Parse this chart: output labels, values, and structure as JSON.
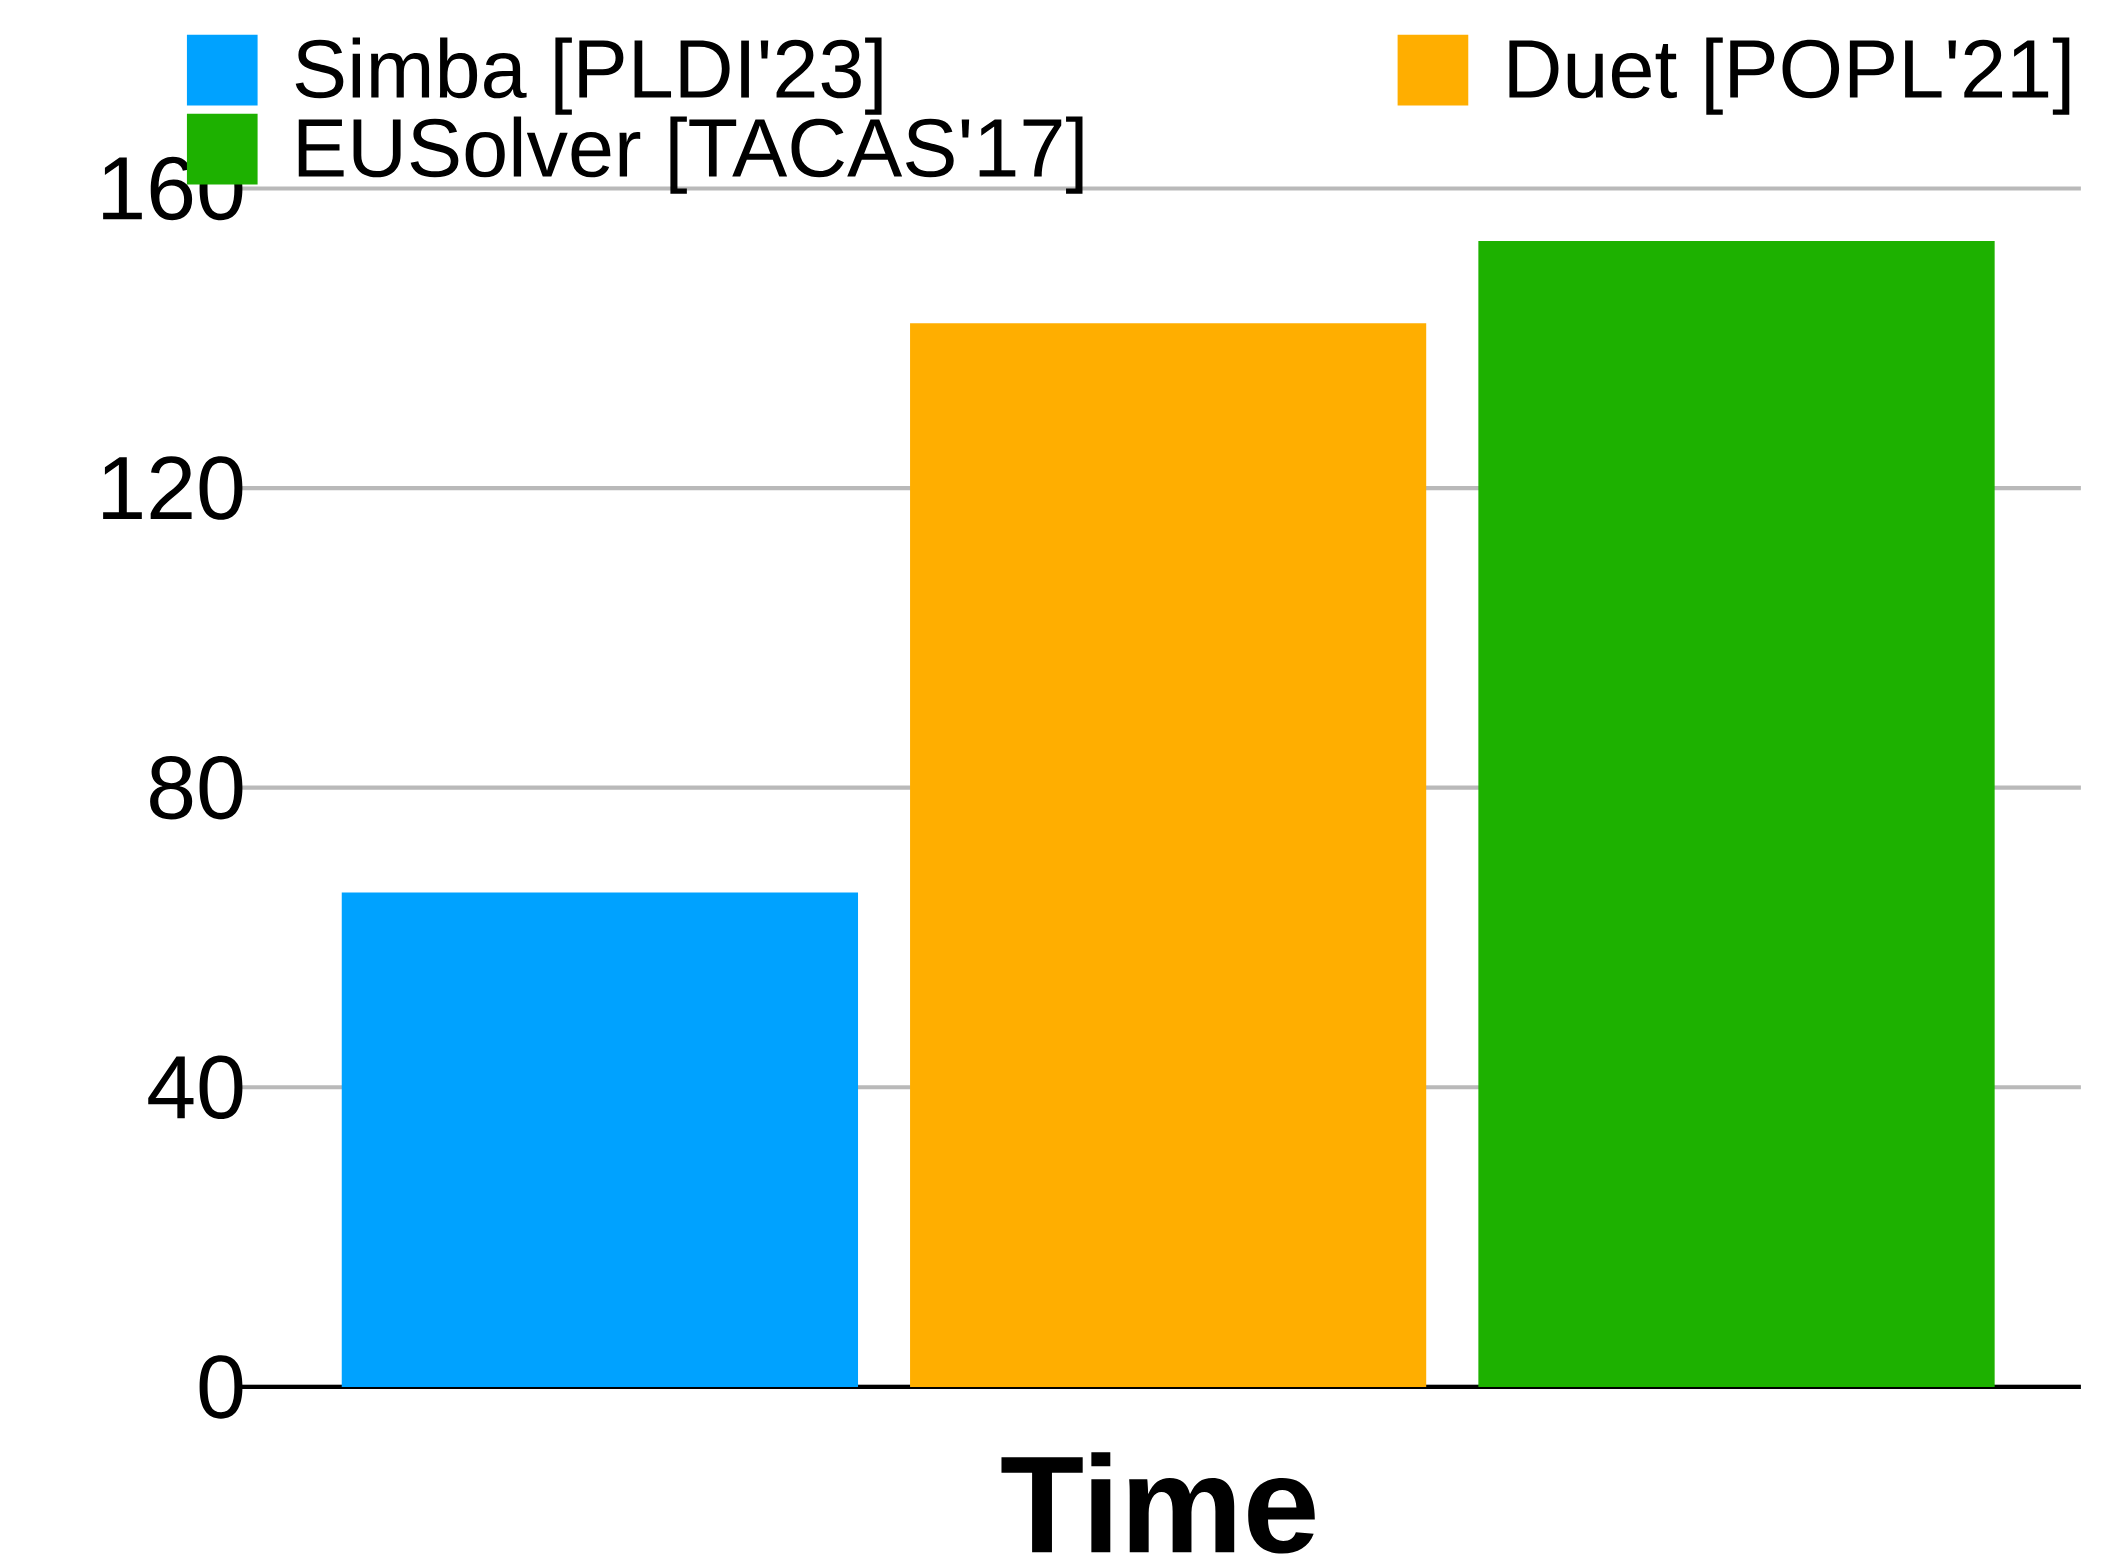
{
  "chart_data": {
    "type": "bar",
    "xlabel": "Time",
    "categories": [
      null
    ],
    "series": [
      {
        "name": "Simba [PLDI'23]",
        "color": "#00a2ff",
        "values": [
          66
        ]
      },
      {
        "name": "Duet [POPL'21]",
        "color": "#ffae00",
        "values": [
          142
        ]
      },
      {
        "name": "EUSolver [TACAS'17]",
        "color": "#1db100",
        "values": [
          153
        ]
      }
    ],
    "ylim": [
      0,
      160
    ],
    "yticks": [
      0,
      40,
      80,
      120,
      160
    ],
    "grid": "y",
    "legend": "top left"
  }
}
